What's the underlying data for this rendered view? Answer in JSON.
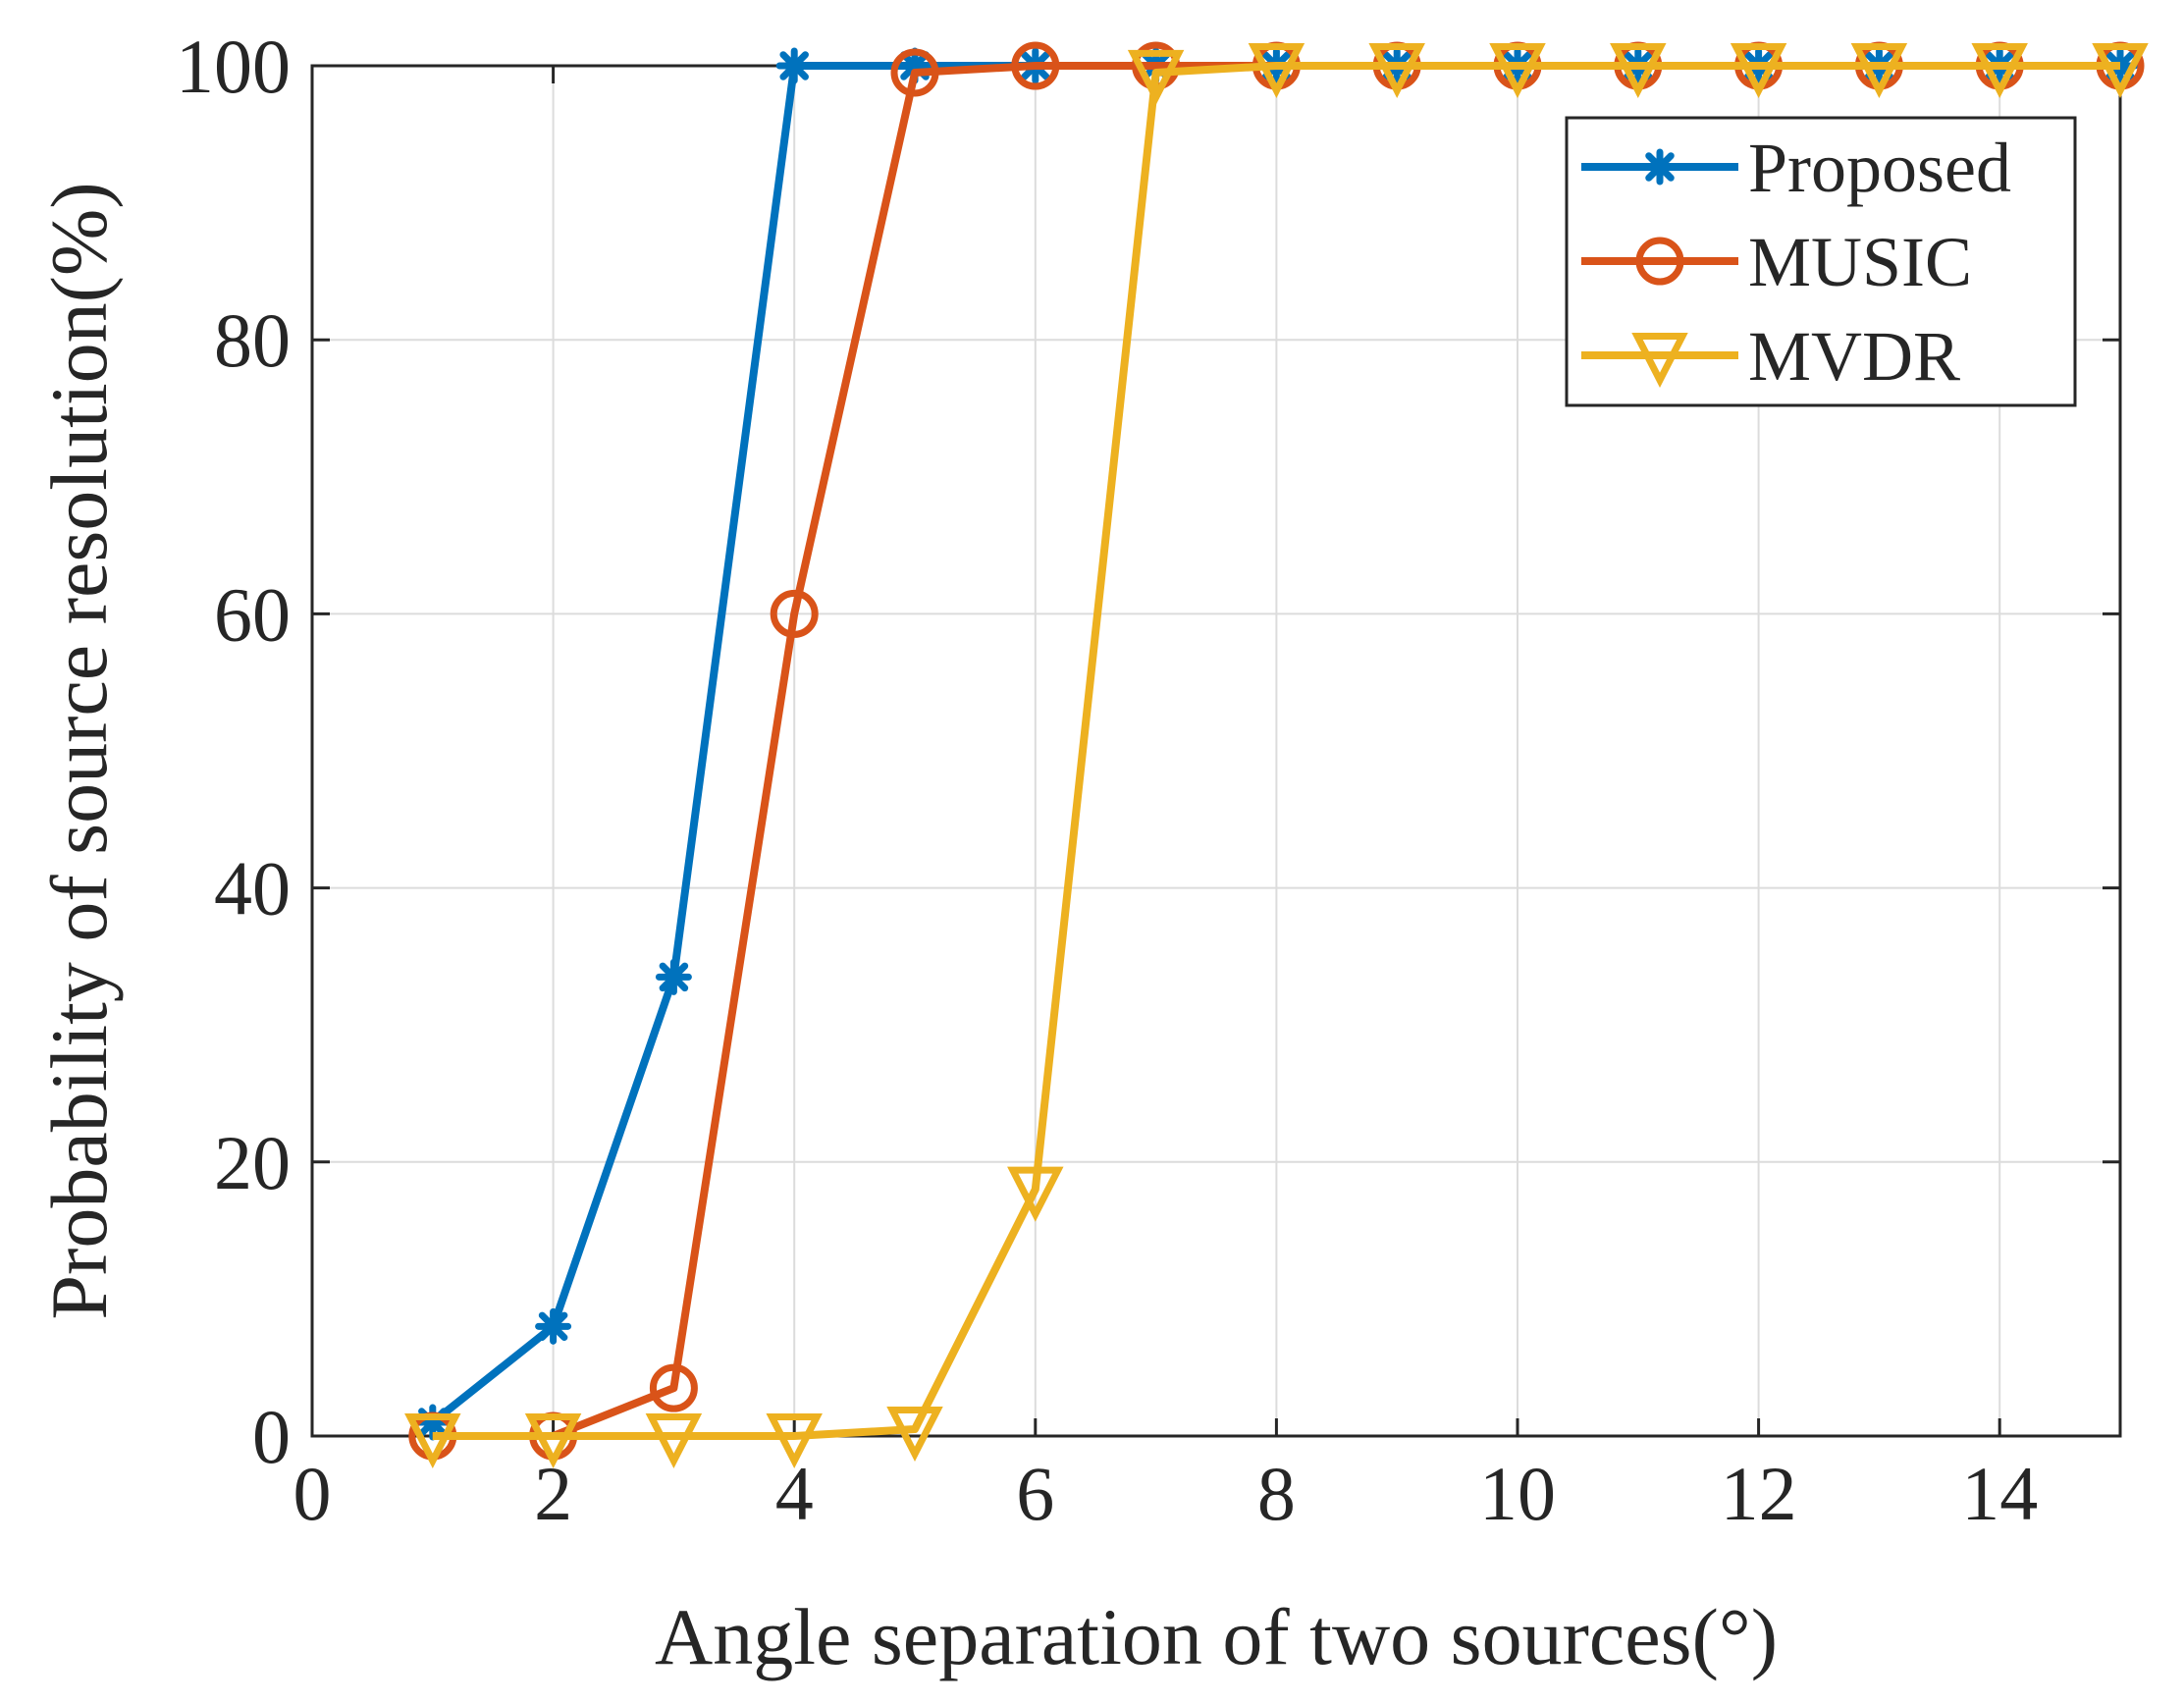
{
  "chart_data": {
    "type": "line",
    "title": "",
    "xlabel": "Angle separation of two sources(°)",
    "ylabel": "Probability of source resolution(%)",
    "xlim": [
      0,
      15
    ],
    "ylim": [
      0,
      100
    ],
    "xticks": [
      0,
      2,
      4,
      6,
      8,
      10,
      12,
      14
    ],
    "yticks": [
      0,
      20,
      40,
      60,
      80,
      100
    ],
    "grid": true,
    "legend_position": "top-right",
    "x": [
      1,
      2,
      3,
      4,
      5,
      6,
      7,
      8,
      9,
      10,
      11,
      12,
      13,
      14,
      15
    ],
    "series": [
      {
        "name": "Proposed",
        "color": "#0072BD",
        "marker": "asterisk",
        "values": [
          1,
          8,
          33.5,
          100,
          100,
          100,
          100,
          100,
          100,
          100,
          100,
          100,
          100,
          100,
          100
        ]
      },
      {
        "name": "MUSIC",
        "color": "#D95319",
        "marker": "circle",
        "values": [
          0,
          0,
          3.5,
          60,
          99.5,
          100,
          100,
          100,
          100,
          100,
          100,
          100,
          100,
          100,
          100
        ]
      },
      {
        "name": "MVDR",
        "color": "#EDB120",
        "marker": "triangle-down",
        "values": [
          0,
          0,
          0,
          0,
          0.5,
          18,
          99.5,
          100,
          100,
          100,
          100,
          100,
          100,
          100,
          100
        ]
      }
    ]
  }
}
